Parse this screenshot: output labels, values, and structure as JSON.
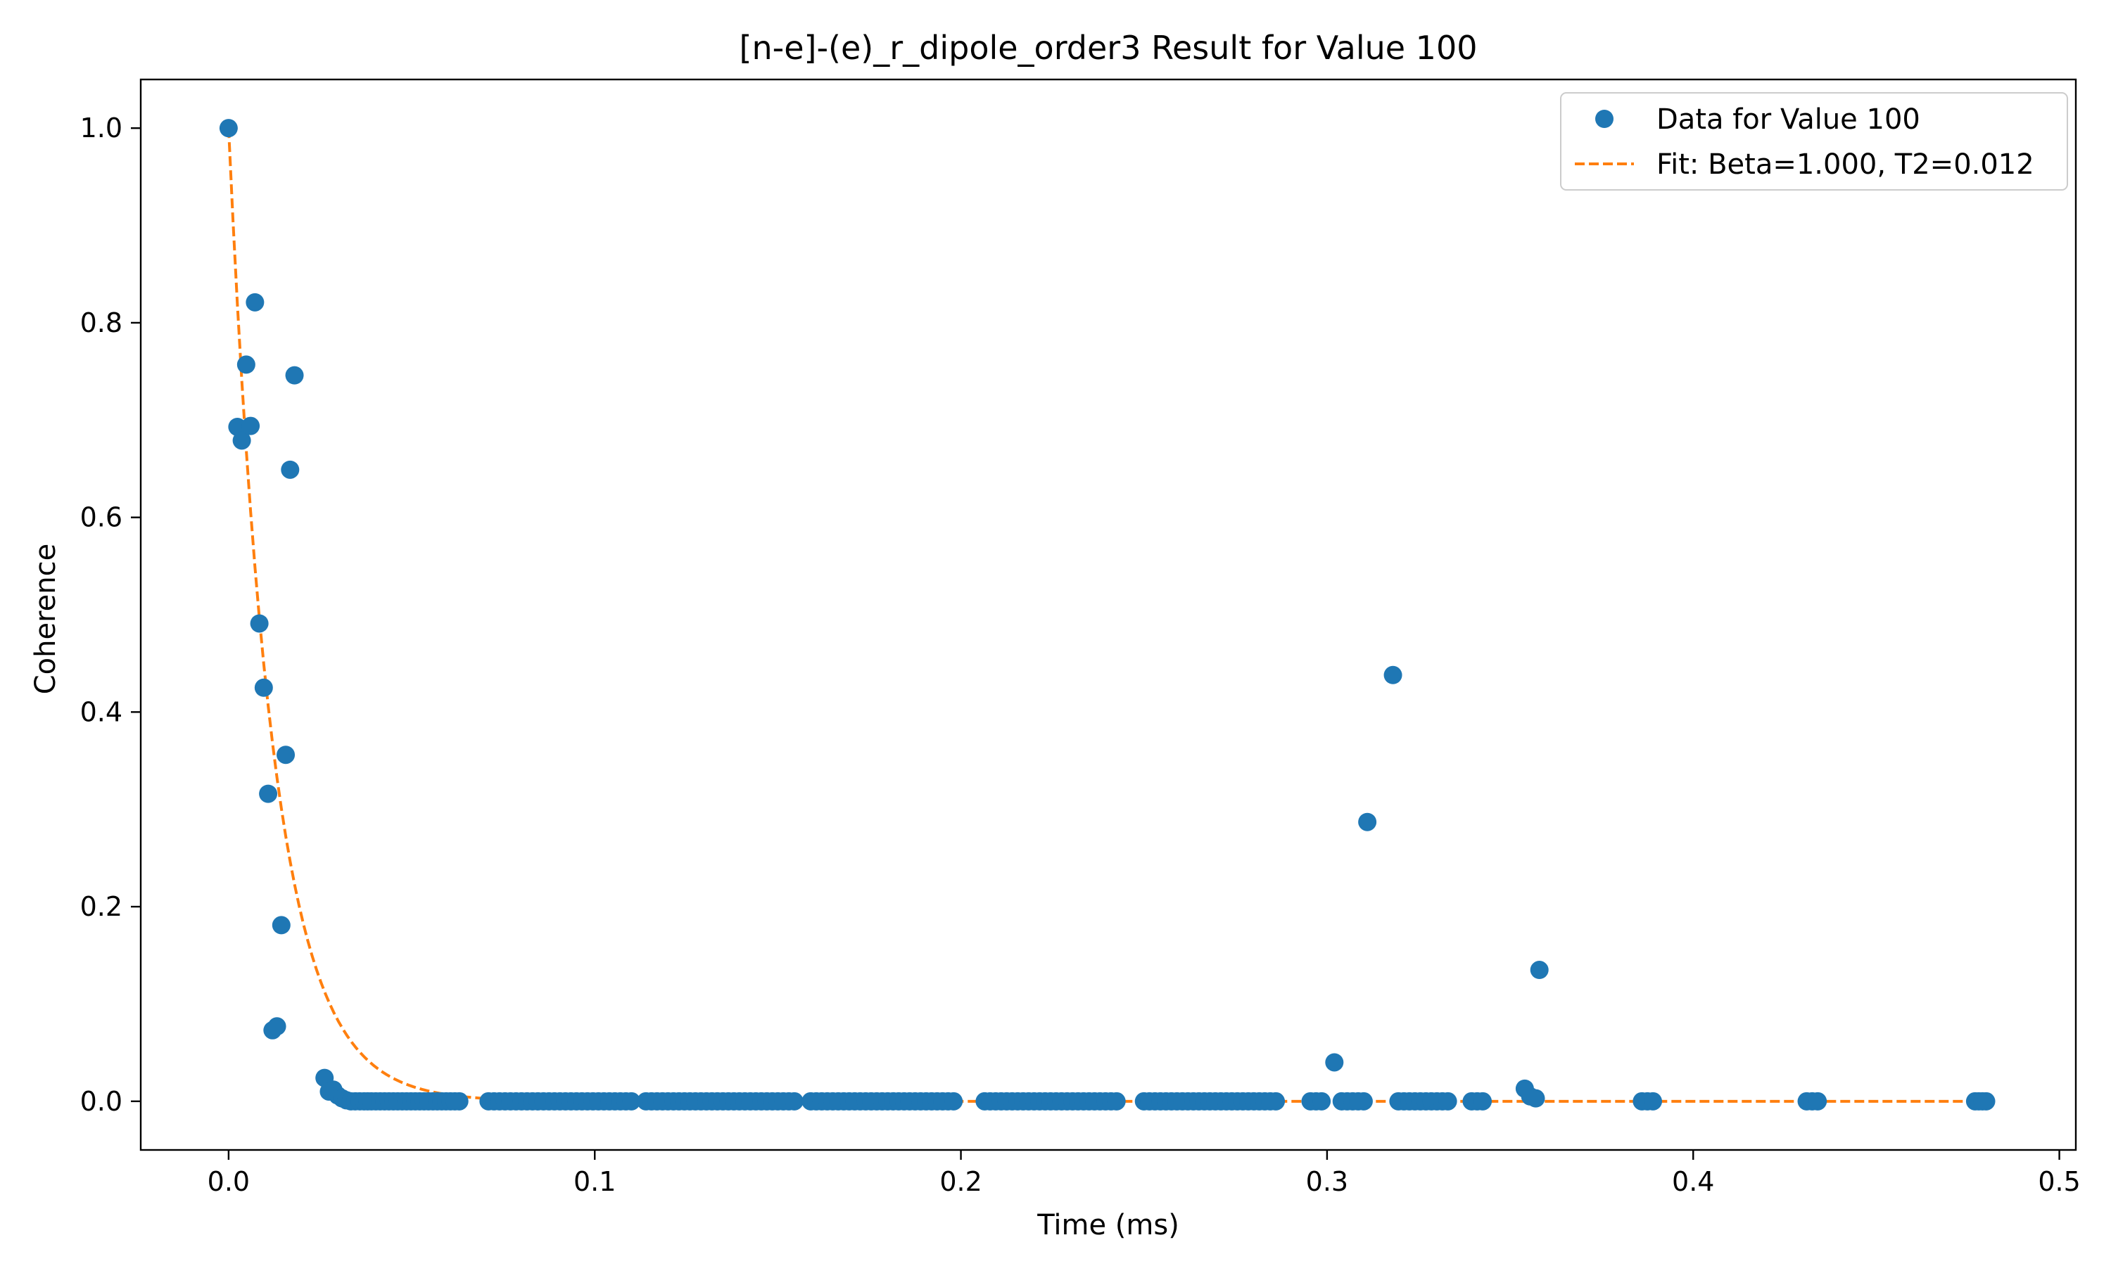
{
  "chart_data": {
    "type": "scatter",
    "title": "[n-e]-(e)_r_dipole_order3 Result for Value 100",
    "xlabel": "Time (ms)",
    "ylabel": "Coherence",
    "xlim": [
      -0.024,
      0.5045
    ],
    "ylim": [
      -0.05,
      1.05
    ],
    "xticks": [
      0.0,
      0.1,
      0.2,
      0.3,
      0.4,
      0.5
    ],
    "xtick_labels": [
      "0.0",
      "0.1",
      "0.2",
      "0.3",
      "0.4",
      "0.5"
    ],
    "yticks": [
      0.0,
      0.2,
      0.4,
      0.6,
      0.8,
      1.0
    ],
    "ytick_labels": [
      "0.0",
      "0.2",
      "0.4",
      "0.6",
      "0.8",
      "1.0"
    ],
    "grid": false,
    "legend_position": "top-right",
    "series": [
      {
        "name": "Data for Value 100",
        "kind": "scatter",
        "color": "#1f77b4",
        "points": [
          [
            0.0,
            1.0
          ],
          [
            0.0024,
            0.693
          ],
          [
            0.0036,
            0.679
          ],
          [
            0.0048,
            0.757
          ],
          [
            0.006,
            0.694
          ],
          [
            0.0072,
            0.821
          ],
          [
            0.0084,
            0.491
          ],
          [
            0.0096,
            0.425
          ],
          [
            0.0108,
            0.316
          ],
          [
            0.012,
            0.073
          ],
          [
            0.0132,
            0.077
          ],
          [
            0.0144,
            0.181
          ],
          [
            0.0156,
            0.356
          ],
          [
            0.0168,
            0.649
          ],
          [
            0.018,
            0.746
          ],
          [
            0.0262,
            0.024
          ],
          [
            0.0274,
            0.01
          ],
          [
            0.0286,
            0.012
          ],
          [
            0.0298,
            0.006
          ],
          [
            0.031,
            0.003
          ],
          [
            0.0322,
            0.001
          ],
          [
            0.0334,
            0.0
          ],
          [
            0.0346,
            0.0
          ],
          [
            0.0358,
            0.0
          ],
          [
            0.037,
            0.0
          ],
          [
            0.038,
            0.0
          ],
          [
            0.039,
            0.0
          ],
          [
            0.0402,
            0.0
          ],
          [
            0.0414,
            0.0
          ],
          [
            0.0426,
            0.0
          ],
          [
            0.0438,
            0.0
          ],
          [
            0.045,
            0.0
          ],
          [
            0.0462,
            0.0
          ],
          [
            0.0474,
            0.0
          ],
          [
            0.0486,
            0.0
          ],
          [
            0.0498,
            0.0
          ],
          [
            0.051,
            0.0
          ],
          [
            0.0522,
            0.0
          ],
          [
            0.0534,
            0.0
          ],
          [
            0.0546,
            0.0
          ],
          [
            0.0558,
            0.0
          ],
          [
            0.057,
            0.0
          ],
          [
            0.0582,
            0.0
          ],
          [
            0.0594,
            0.0
          ],
          [
            0.0606,
            0.0
          ],
          [
            0.0618,
            0.0
          ],
          [
            0.063,
            0.0
          ],
          [
            0.071,
            0.0
          ],
          [
            0.0725,
            0.0
          ],
          [
            0.074,
            0.0
          ],
          [
            0.0755,
            0.0
          ],
          [
            0.077,
            0.0
          ],
          [
            0.0785,
            0.0
          ],
          [
            0.08,
            0.0
          ],
          [
            0.0815,
            0.0
          ],
          [
            0.083,
            0.0
          ],
          [
            0.0845,
            0.0
          ],
          [
            0.086,
            0.0
          ],
          [
            0.0875,
            0.0
          ],
          [
            0.089,
            0.0
          ],
          [
            0.0905,
            0.0
          ],
          [
            0.092,
            0.0
          ],
          [
            0.0935,
            0.0
          ],
          [
            0.095,
            0.0
          ],
          [
            0.0965,
            0.0
          ],
          [
            0.098,
            0.0
          ],
          [
            0.0995,
            0.0
          ],
          [
            0.101,
            0.0
          ],
          [
            0.1025,
            0.0
          ],
          [
            0.104,
            0.0
          ],
          [
            0.1055,
            0.0
          ],
          [
            0.107,
            0.0
          ],
          [
            0.1085,
            0.0
          ],
          [
            0.11,
            0.0
          ],
          [
            0.114,
            0.0
          ],
          [
            0.1155,
            0.0
          ],
          [
            0.117,
            0.0
          ],
          [
            0.1185,
            0.0
          ],
          [
            0.12,
            0.0
          ],
          [
            0.1215,
            0.0
          ],
          [
            0.123,
            0.0
          ],
          [
            0.1245,
            0.0
          ],
          [
            0.126,
            0.0
          ],
          [
            0.1275,
            0.0
          ],
          [
            0.129,
            0.0
          ],
          [
            0.1305,
            0.0
          ],
          [
            0.132,
            0.0
          ],
          [
            0.1335,
            0.0
          ],
          [
            0.135,
            0.0
          ],
          [
            0.1365,
            0.0
          ],
          [
            0.138,
            0.0
          ],
          [
            0.1395,
            0.0
          ],
          [
            0.141,
            0.0
          ],
          [
            0.1425,
            0.0
          ],
          [
            0.144,
            0.0
          ],
          [
            0.1455,
            0.0
          ],
          [
            0.147,
            0.0
          ],
          [
            0.1485,
            0.0
          ],
          [
            0.15,
            0.0
          ],
          [
            0.1515,
            0.0
          ],
          [
            0.153,
            0.0
          ],
          [
            0.1545,
            0.0
          ],
          [
            0.159,
            0.0
          ],
          [
            0.1605,
            0.0
          ],
          [
            0.162,
            0.0
          ],
          [
            0.1635,
            0.0
          ],
          [
            0.165,
            0.0
          ],
          [
            0.1665,
            0.0
          ],
          [
            0.168,
            0.0
          ],
          [
            0.1695,
            0.0
          ],
          [
            0.171,
            0.0
          ],
          [
            0.1725,
            0.0
          ],
          [
            0.174,
            0.0
          ],
          [
            0.1755,
            0.0
          ],
          [
            0.177,
            0.0
          ],
          [
            0.1785,
            0.0
          ],
          [
            0.18,
            0.0
          ],
          [
            0.1815,
            0.0
          ],
          [
            0.183,
            0.0
          ],
          [
            0.1845,
            0.0
          ],
          [
            0.186,
            0.0
          ],
          [
            0.1875,
            0.0
          ],
          [
            0.189,
            0.0
          ],
          [
            0.1905,
            0.0
          ],
          [
            0.192,
            0.0
          ],
          [
            0.1935,
            0.0
          ],
          [
            0.195,
            0.0
          ],
          [
            0.1965,
            0.0
          ],
          [
            0.198,
            0.0
          ],
          [
            0.2065,
            0.0
          ],
          [
            0.208,
            0.0
          ],
          [
            0.2095,
            0.0
          ],
          [
            0.211,
            0.0
          ],
          [
            0.2125,
            0.0
          ],
          [
            0.214,
            0.0
          ],
          [
            0.2155,
            0.0
          ],
          [
            0.217,
            0.0
          ],
          [
            0.2185,
            0.0
          ],
          [
            0.22,
            0.0
          ],
          [
            0.2215,
            0.0
          ],
          [
            0.223,
            0.0
          ],
          [
            0.2245,
            0.0
          ],
          [
            0.226,
            0.0
          ],
          [
            0.2275,
            0.0
          ],
          [
            0.229,
            0.0
          ],
          [
            0.2305,
            0.0
          ],
          [
            0.232,
            0.0
          ],
          [
            0.2335,
            0.0
          ],
          [
            0.235,
            0.0
          ],
          [
            0.2365,
            0.0
          ],
          [
            0.238,
            0.0
          ],
          [
            0.2395,
            0.0
          ],
          [
            0.241,
            0.0
          ],
          [
            0.2425,
            0.0
          ],
          [
            0.25,
            0.0
          ],
          [
            0.2515,
            0.0
          ],
          [
            0.253,
            0.0
          ],
          [
            0.2545,
            0.0
          ],
          [
            0.256,
            0.0
          ],
          [
            0.2575,
            0.0
          ],
          [
            0.259,
            0.0
          ],
          [
            0.2605,
            0.0
          ],
          [
            0.262,
            0.0
          ],
          [
            0.2635,
            0.0
          ],
          [
            0.265,
            0.0
          ],
          [
            0.2665,
            0.0
          ],
          [
            0.268,
            0.0
          ],
          [
            0.2695,
            0.0
          ],
          [
            0.271,
            0.0
          ],
          [
            0.2725,
            0.0
          ],
          [
            0.274,
            0.0
          ],
          [
            0.2755,
            0.0
          ],
          [
            0.277,
            0.0
          ],
          [
            0.2785,
            0.0
          ],
          [
            0.28,
            0.0
          ],
          [
            0.2815,
            0.0
          ],
          [
            0.283,
            0.0
          ],
          [
            0.2845,
            0.0
          ],
          [
            0.286,
            0.0
          ],
          [
            0.2955,
            0.0
          ],
          [
            0.297,
            0.0
          ],
          [
            0.2985,
            0.0
          ],
          [
            0.302,
            0.04
          ],
          [
            0.304,
            0.0
          ],
          [
            0.3055,
            0.0
          ],
          [
            0.307,
            0.0
          ],
          [
            0.3085,
            0.0
          ],
          [
            0.31,
            0.0
          ],
          [
            0.311,
            0.287
          ],
          [
            0.318,
            0.438
          ],
          [
            0.3195,
            0.0
          ],
          [
            0.321,
            0.0
          ],
          [
            0.3225,
            0.0
          ],
          [
            0.324,
            0.0
          ],
          [
            0.3255,
            0.0
          ],
          [
            0.327,
            0.0
          ],
          [
            0.3285,
            0.0
          ],
          [
            0.33,
            0.0
          ],
          [
            0.3315,
            0.0
          ],
          [
            0.333,
            0.0
          ],
          [
            0.3395,
            0.0
          ],
          [
            0.341,
            0.0
          ],
          [
            0.3425,
            0.0
          ],
          [
            0.354,
            0.013
          ],
          [
            0.3555,
            0.005
          ],
          [
            0.357,
            0.003
          ],
          [
            0.358,
            0.135
          ],
          [
            0.386,
            0.0
          ],
          [
            0.3875,
            0.0
          ],
          [
            0.389,
            0.0
          ],
          [
            0.431,
            0.0
          ],
          [
            0.4325,
            0.0
          ],
          [
            0.434,
            0.0
          ],
          [
            0.477,
            0.0
          ],
          [
            0.478,
            0.0
          ],
          [
            0.479,
            0.0
          ],
          [
            0.48,
            0.0
          ]
        ]
      },
      {
        "name": "Fit: Beta=1.000, T2=0.012",
        "kind": "line",
        "style": "dashed",
        "color": "#ff7f0e",
        "beta": 1.0,
        "t2": 0.012,
        "x_range": [
          0.0,
          0.48
        ]
      }
    ]
  }
}
